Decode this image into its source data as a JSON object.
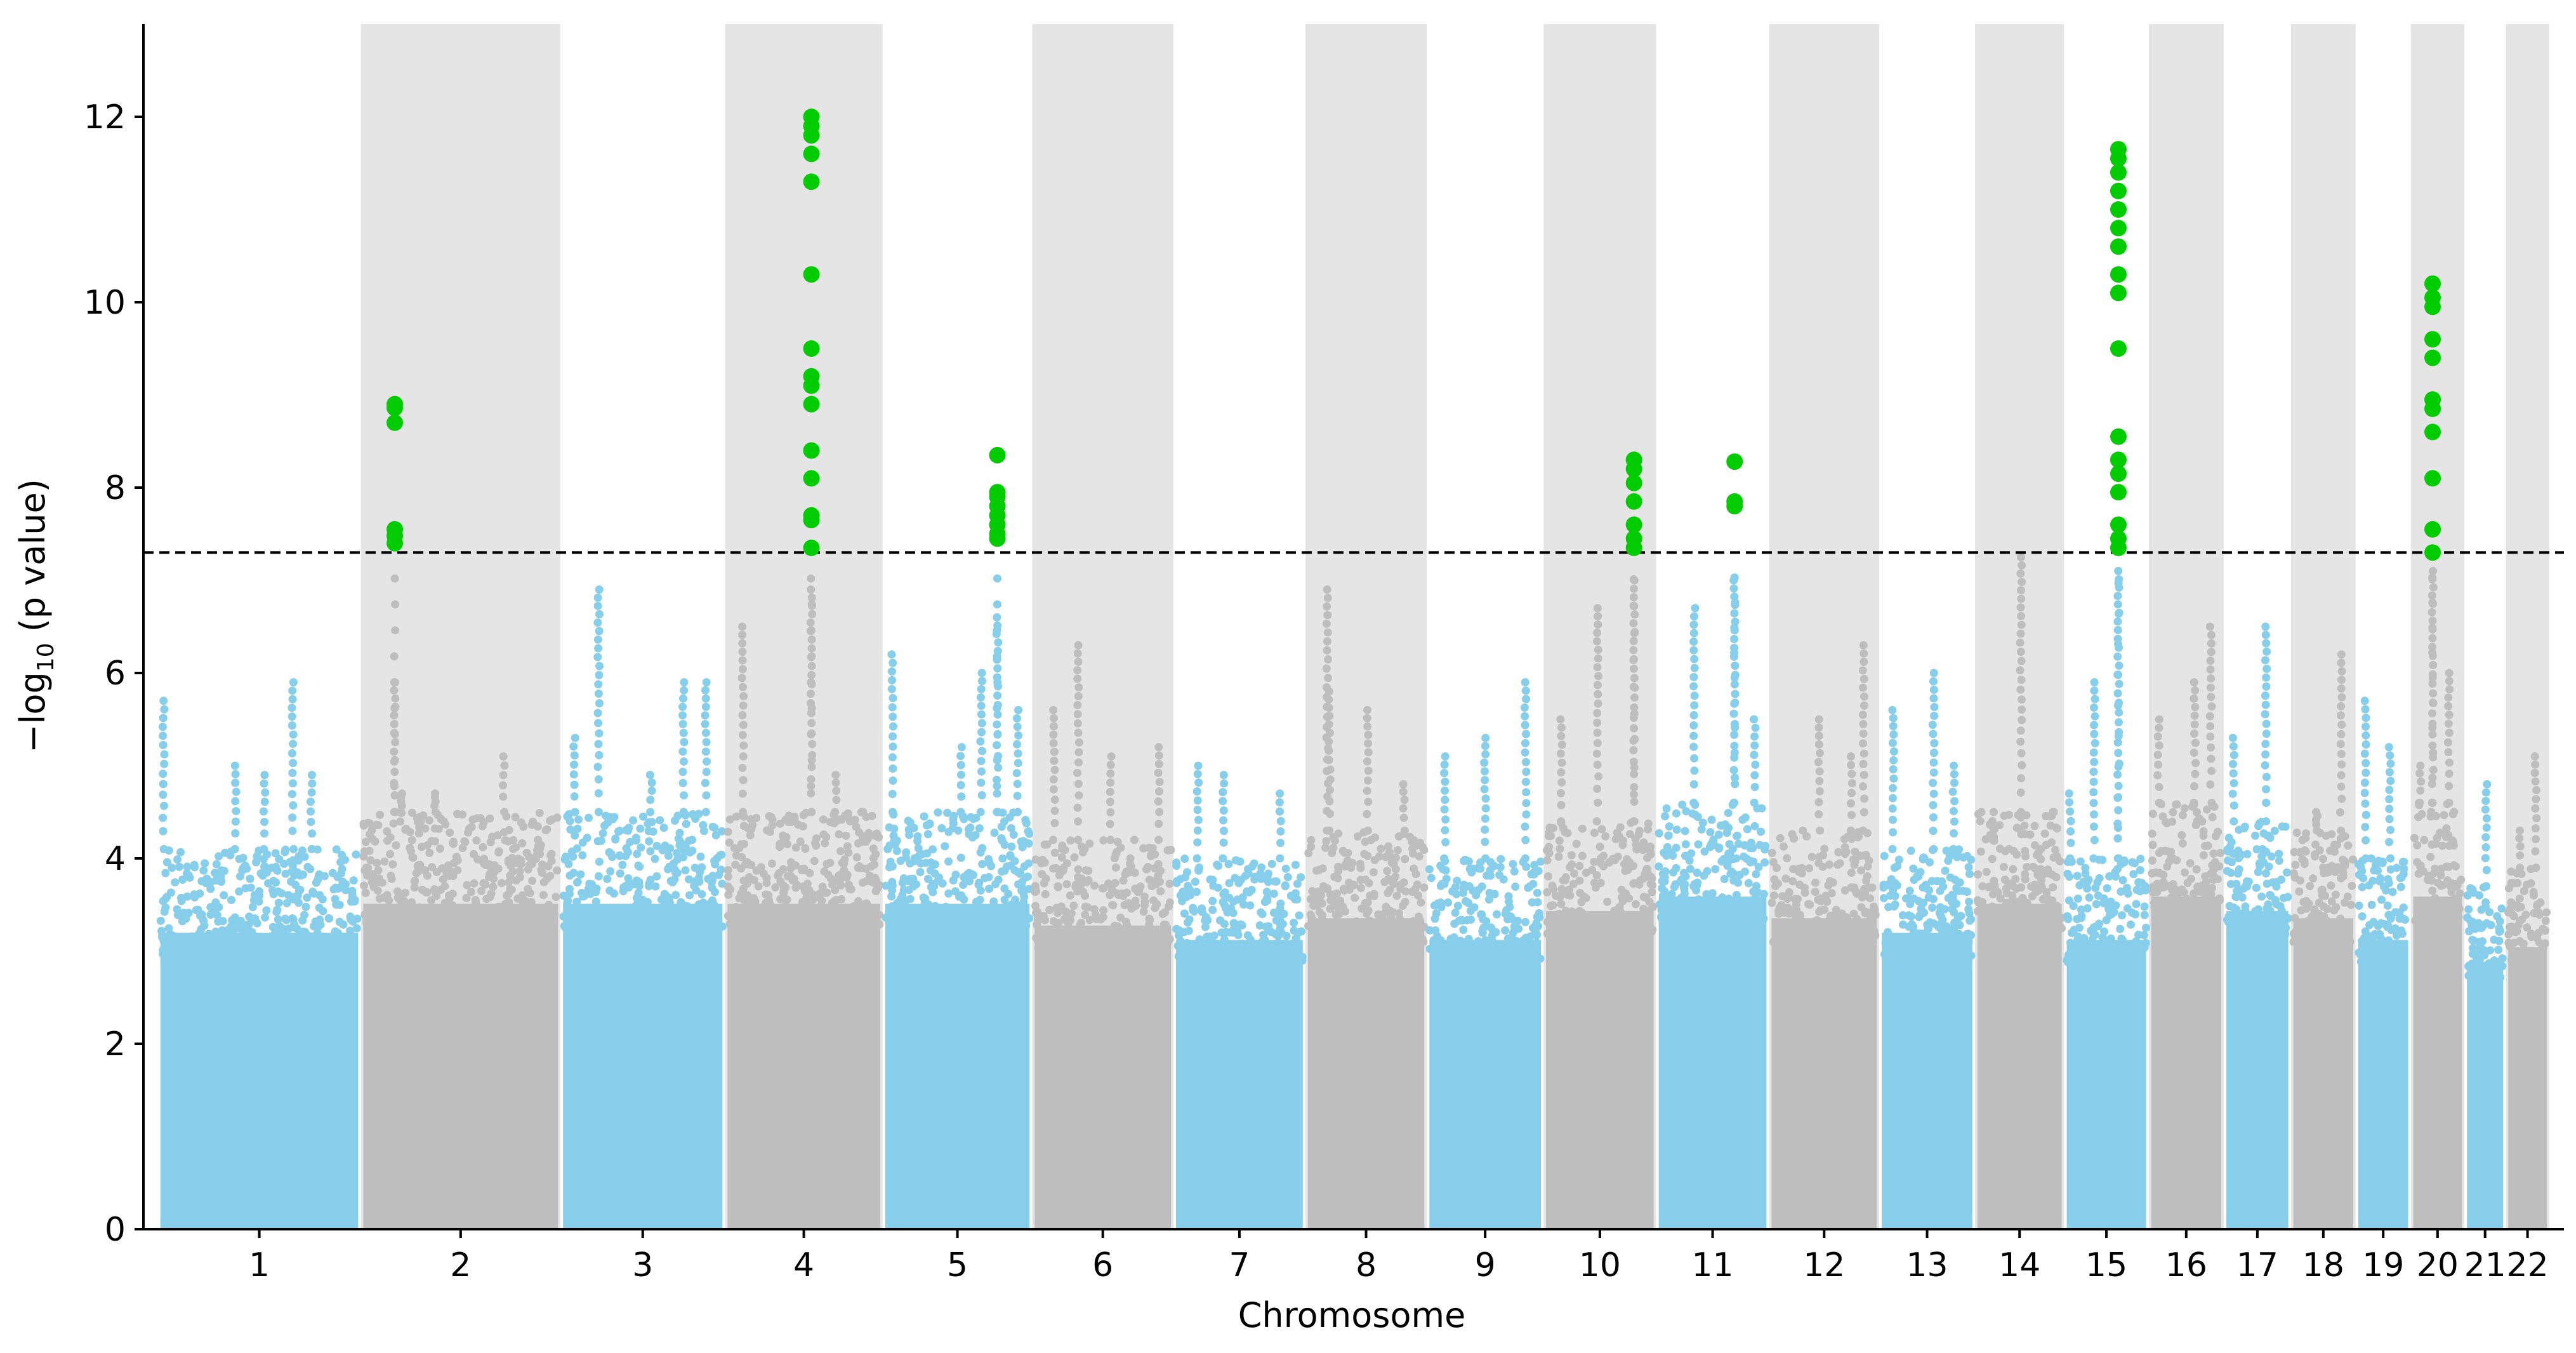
{
  "chart_data": {
    "type": "scatter",
    "subtype": "manhattan",
    "title": "",
    "xlabel": "Chromosome",
    "ylabel": "−log",
    "ylabel_sub": "10",
    "ylabel_suffix": " (p value)",
    "ylim": [
      0,
      13
    ],
    "yticks": [
      0,
      2,
      4,
      6,
      8,
      10,
      12
    ],
    "threshold": 7.3,
    "colors": {
      "odd": "#87CEEB",
      "even": "#BEBEBE",
      "significant": "#00CC00",
      "band": "#E5E5E5",
      "threshold": "#000000"
    },
    "chromosomes": [
      {
        "label": "1",
        "span": [
          0.0,
          247.2
        ],
        "base_max": 4.1,
        "peaks": [
          [
            5,
            5.7
          ],
          [
            94,
            5.0
          ],
          [
            130,
            4.9
          ],
          [
            165,
            5.9
          ],
          [
            188,
            4.9
          ]
        ],
        "significant": []
      },
      {
        "label": "2",
        "span": [
          251.5,
          494.8
        ],
        "base_max": 4.5,
        "peaks": [
          [
            40,
            5.9
          ],
          [
            48,
            4.7
          ],
          [
            90,
            4.7
          ],
          [
            175,
            5.1
          ]
        ],
        "significant": [
          8.9,
          8.86,
          8.7,
          7.55,
          7.48,
          7.4
        ]
      },
      {
        "label": "3",
        "span": [
          499.1,
          698.6
        ],
        "base_max": 4.5,
        "peaks": [
          [
            15,
            5.3
          ],
          [
            45,
            6.9
          ],
          [
            110,
            4.9
          ],
          [
            150,
            5.9
          ],
          [
            178,
            5.9
          ]
        ],
        "significant": []
      },
      {
        "label": "4",
        "span": [
          702.9,
          894.1
        ],
        "base_max": 4.5,
        "peaks": [
          [
            20,
            6.5
          ],
          [
            105,
            6.9
          ],
          [
            135,
            4.9
          ],
          [
            168,
            4.5
          ]
        ],
        "significant": [
          12.0,
          11.9,
          11.8,
          11.6,
          11.3,
          10.3,
          9.5,
          9.2,
          9.1,
          8.9,
          8.4,
          8.1,
          7.7,
          7.65,
          7.35
        ]
      },
      {
        "label": "5",
        "span": [
          898.4,
          1079.3
        ],
        "base_max": 4.5,
        "peaks": [
          [
            10,
            6.2
          ],
          [
            95,
            5.2
          ],
          [
            120,
            6.0
          ],
          [
            140,
            6.6
          ],
          [
            165,
            5.6
          ]
        ],
        "significant": [
          8.35,
          7.95,
          7.9,
          7.8,
          7.7,
          7.6,
          7.5,
          7.45
        ]
      },
      {
        "label": "6",
        "span": [
          1083.6,
          1254.5
        ],
        "base_max": 4.2,
        "peaks": [
          [
            25,
            5.6
          ],
          [
            55,
            6.3
          ],
          [
            95,
            5.1
          ],
          [
            155,
            5.2
          ]
        ],
        "significant": []
      },
      {
        "label": "7",
        "span": [
          1258.8,
          1417.9
        ],
        "base_max": 4.0,
        "peaks": [
          [
            28,
            5.0
          ],
          [
            60,
            4.9
          ],
          [
            130,
            4.7
          ]
        ],
        "significant": []
      },
      {
        "label": "8",
        "span": [
          1422.2,
          1568.5
        ],
        "base_max": 4.3,
        "peaks": [
          [
            25,
            6.9
          ],
          [
            28,
            5.8
          ],
          [
            75,
            5.6
          ],
          [
            120,
            4.8
          ]
        ],
        "significant": []
      },
      {
        "label": "9",
        "span": [
          1572.8,
          1713.1
        ],
        "base_max": 4.0,
        "peaks": [
          [
            20,
            5.1
          ],
          [
            70,
            5.3
          ],
          [
            120,
            5.9
          ]
        ],
        "significant": []
      },
      {
        "label": "10",
        "span": [
          1717.4,
          1852.8
        ],
        "base_max": 4.4,
        "peaks": [
          [
            20,
            5.5
          ],
          [
            65,
            6.7
          ],
          [
            110,
            7.0
          ]
        ],
        "significant": [
          8.3,
          8.2,
          8.05,
          7.85,
          7.6,
          7.45,
          7.35
        ]
      },
      {
        "label": "11",
        "span": [
          1857.1,
          1992.6
        ],
        "base_max": 4.6,
        "peaks": [
          [
            45,
            6.7
          ],
          [
            95,
            7.0
          ],
          [
            120,
            5.5
          ]
        ],
        "significant": [
          8.28,
          7.85,
          7.8
        ]
      },
      {
        "label": "12",
        "span": [
          1996.9,
          2129.3
        ],
        "base_max": 4.3,
        "peaks": [
          [
            60,
            5.5
          ],
          [
            100,
            5.1
          ],
          [
            115,
            6.3
          ]
        ],
        "significant": []
      },
      {
        "label": "13",
        "span": [
          2133.6,
          2247.8
        ],
        "base_max": 4.1,
        "peaks": [
          [
            15,
            5.6
          ],
          [
            65,
            6.0
          ],
          [
            90,
            5.0
          ]
        ],
        "significant": []
      },
      {
        "label": "14",
        "span": [
          2252.1,
          2358.5
        ],
        "base_max": 4.5,
        "peaks": [
          [
            20,
            4.2
          ],
          [
            55,
            7.25
          ],
          [
            95,
            4.5
          ]
        ],
        "significant": []
      },
      {
        "label": "15",
        "span": [
          2362.8,
          2463.1
        ],
        "base_max": 4.0,
        "peaks": [
          [
            5,
            4.7
          ],
          [
            35,
            5.9
          ],
          [
            65,
            7.1
          ]
        ],
        "significant": [
          11.65,
          11.55,
          11.4,
          11.2,
          11.0,
          10.8,
          10.6,
          10.3,
          10.1,
          9.5,
          8.55,
          8.3,
          8.15,
          7.95,
          7.6,
          7.45,
          7.35
        ]
      },
      {
        "label": "16",
        "span": [
          2467.4,
          2556.3
        ],
        "base_max": 4.6,
        "peaks": [
          [
            10,
            5.5
          ],
          [
            55,
            5.9
          ],
          [
            75,
            6.5
          ]
        ],
        "significant": []
      },
      {
        "label": "17",
        "span": [
          2560.6,
          2639.4
        ],
        "base_max": 4.4,
        "peaks": [
          [
            10,
            5.3
          ],
          [
            50,
            6.5
          ]
        ],
        "significant": []
      },
      {
        "label": "18",
        "span": [
          2643.7,
          2719.8
        ],
        "base_max": 4.3,
        "peaks": [
          [
            30,
            4.5
          ],
          [
            60,
            6.2
          ]
        ],
        "significant": []
      },
      {
        "label": "19",
        "span": [
          2724.1,
          2787.9
        ],
        "base_max": 4.0,
        "peaks": [
          [
            10,
            5.7
          ],
          [
            40,
            5.2
          ]
        ],
        "significant": []
      },
      {
        "label": "20",
        "span": [
          2792.2,
          2854.5
        ],
        "base_max": 4.6,
        "peaks": [
          [
            10,
            5.0
          ],
          [
            25,
            7.1
          ],
          [
            45,
            6.0
          ]
        ],
        "significant": [
          10.2,
          10.05,
          9.95,
          9.6,
          9.4,
          8.95,
          8.85,
          8.6,
          8.1,
          7.55,
          7.3
        ]
      },
      {
        "label": "21",
        "span": [
          2858.8,
          2905.7
        ],
        "base_max": 3.7,
        "peaks": [
          [
            25,
            4.8
          ]
        ],
        "significant": []
      },
      {
        "label": "22",
        "span": [
          2910.0,
          2959.7
        ],
        "base_max": 3.9,
        "peaks": [
          [
            15,
            4.3
          ],
          [
            35,
            5.1
          ]
        ],
        "significant": []
      }
    ]
  }
}
